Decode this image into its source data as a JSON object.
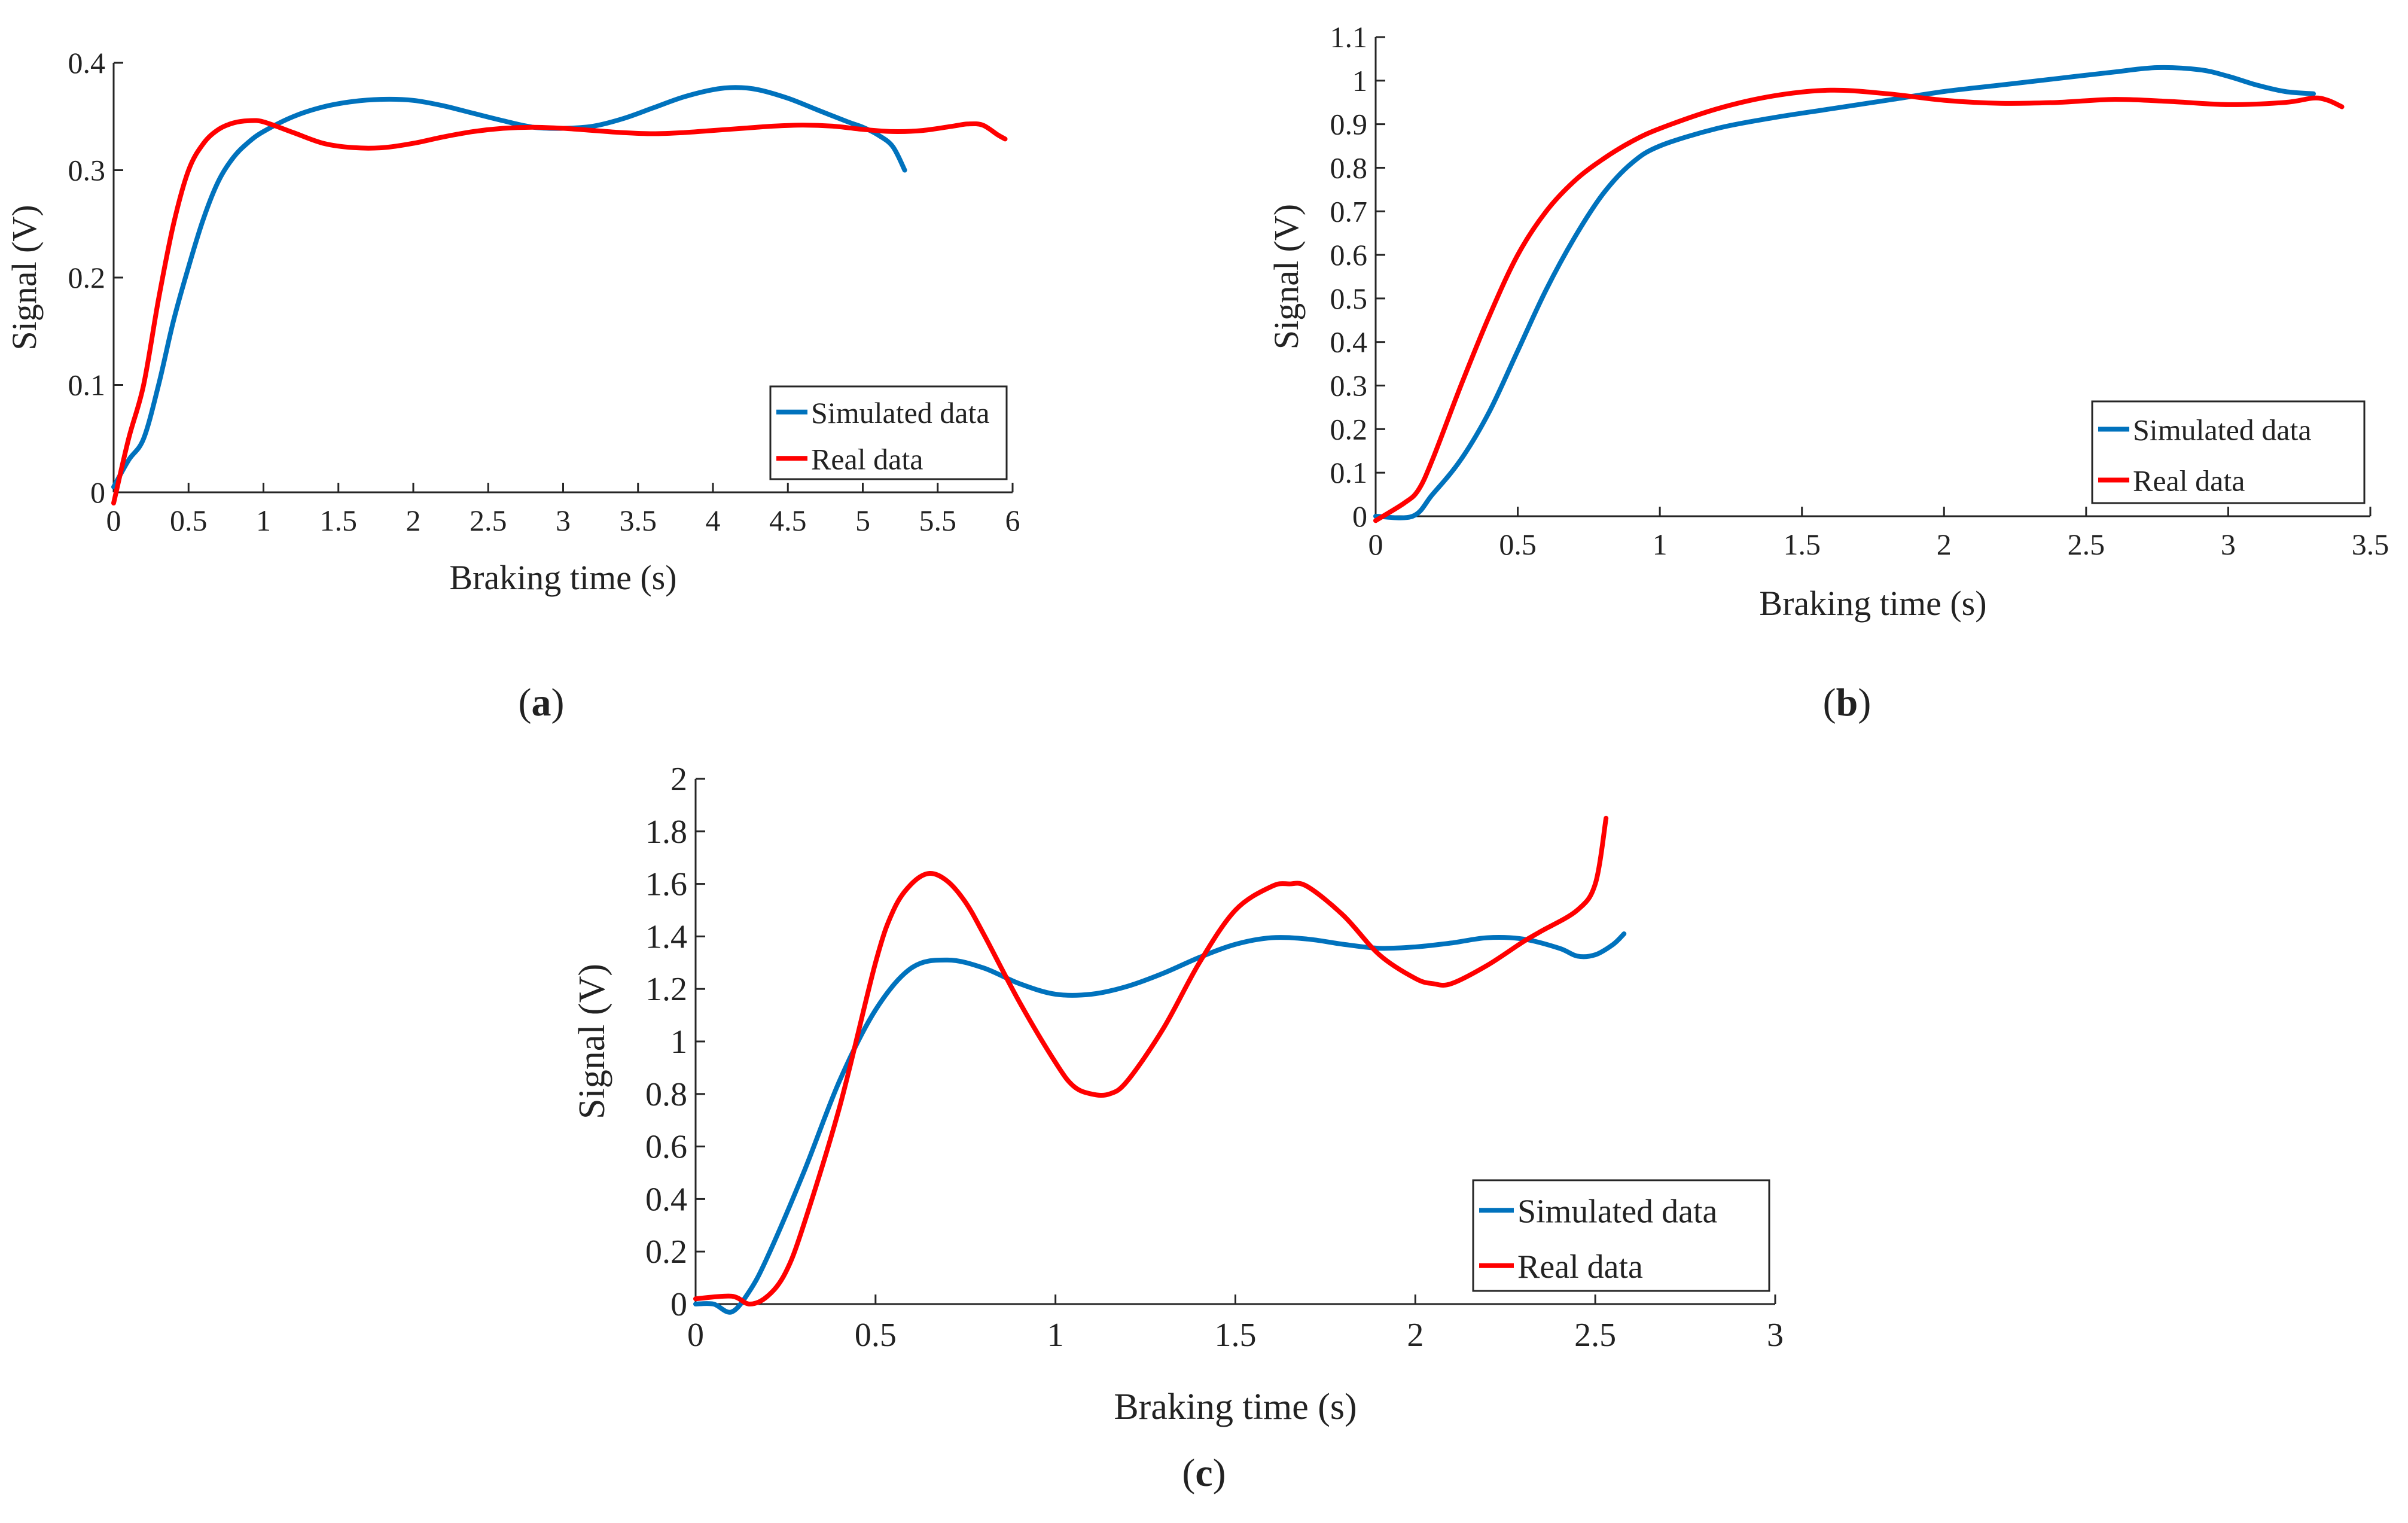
{
  "chart_data": [
    {
      "panel": "a",
      "type": "line",
      "xlabel": "Braking time (s)",
      "ylabel": "Signal (V)",
      "xlim": [
        0,
        6
      ],
      "ylim": [
        0,
        0.4
      ],
      "xticks": [
        0,
        0.5,
        1,
        1.5,
        2,
        2.5,
        3,
        3.5,
        4,
        4.5,
        5,
        5.5,
        6
      ],
      "yticks": [
        0,
        0.1,
        0.2,
        0.3,
        0.4
      ],
      "legend": "bottom-right",
      "series": [
        {
          "name": "Simulated data",
          "color": "#0072BD",
          "points": [
            [
              0,
              0.005
            ],
            [
              0.1,
              0.03
            ],
            [
              0.2,
              0.05
            ],
            [
              0.3,
              0.1
            ],
            [
              0.4,
              0.16
            ],
            [
              0.5,
              0.21
            ],
            [
              0.6,
              0.255
            ],
            [
              0.7,
              0.29
            ],
            [
              0.8,
              0.312
            ],
            [
              0.9,
              0.326
            ],
            [
              1.0,
              0.336
            ],
            [
              1.2,
              0.35
            ],
            [
              1.4,
              0.359
            ],
            [
              1.6,
              0.364
            ],
            [
              1.8,
              0.366
            ],
            [
              2.0,
              0.365
            ],
            [
              2.2,
              0.36
            ],
            [
              2.4,
              0.353
            ],
            [
              2.6,
              0.346
            ],
            [
              2.8,
              0.34
            ],
            [
              3.0,
              0.339
            ],
            [
              3.2,
              0.341
            ],
            [
              3.4,
              0.348
            ],
            [
              3.6,
              0.358
            ],
            [
              3.8,
              0.368
            ],
            [
              4.0,
              0.375
            ],
            [
              4.15,
              0.377
            ],
            [
              4.3,
              0.375
            ],
            [
              4.5,
              0.367
            ],
            [
              4.7,
              0.356
            ],
            [
              4.9,
              0.345
            ],
            [
              5.0,
              0.34
            ],
            [
              5.1,
              0.333
            ],
            [
              5.2,
              0.322
            ],
            [
              5.28,
              0.3
            ]
          ]
        },
        {
          "name": "Real data",
          "color": "#FF0000",
          "points": [
            [
              0,
              -0.01
            ],
            [
              0.1,
              0.05
            ],
            [
              0.2,
              0.1
            ],
            [
              0.3,
              0.18
            ],
            [
              0.4,
              0.25
            ],
            [
              0.5,
              0.3
            ],
            [
              0.6,
              0.325
            ],
            [
              0.7,
              0.338
            ],
            [
              0.8,
              0.344
            ],
            [
              0.9,
              0.346
            ],
            [
              1.0,
              0.345
            ],
            [
              1.2,
              0.335
            ],
            [
              1.4,
              0.325
            ],
            [
              1.6,
              0.321
            ],
            [
              1.8,
              0.321
            ],
            [
              2.0,
              0.325
            ],
            [
              2.2,
              0.331
            ],
            [
              2.4,
              0.336
            ],
            [
              2.6,
              0.339
            ],
            [
              2.8,
              0.34
            ],
            [
              3.0,
              0.339
            ],
            [
              3.2,
              0.337
            ],
            [
              3.4,
              0.335
            ],
            [
              3.6,
              0.334
            ],
            [
              3.8,
              0.335
            ],
            [
              4.0,
              0.337
            ],
            [
              4.2,
              0.339
            ],
            [
              4.4,
              0.341
            ],
            [
              4.6,
              0.342
            ],
            [
              4.8,
              0.341
            ],
            [
              5.0,
              0.338
            ],
            [
              5.2,
              0.336
            ],
            [
              5.4,
              0.337
            ],
            [
              5.6,
              0.341
            ],
            [
              5.7,
              0.343
            ],
            [
              5.8,
              0.342
            ],
            [
              5.9,
              0.333
            ],
            [
              5.95,
              0.329
            ]
          ]
        }
      ]
    },
    {
      "panel": "b",
      "type": "line",
      "xlabel": "Braking time (s)",
      "ylabel": "Signal (V)",
      "xlim": [
        0,
        3.5
      ],
      "ylim": [
        0,
        1.1
      ],
      "xticks": [
        0,
        0.5,
        1,
        1.5,
        2,
        2.5,
        3,
        3.5
      ],
      "yticks": [
        0,
        0.1,
        0.2,
        0.3,
        0.4,
        0.5,
        0.6,
        0.7,
        0.8,
        0.9,
        1,
        1.1
      ],
      "legend": "bottom-right",
      "series": [
        {
          "name": "Simulated data",
          "color": "#0072BD",
          "points": [
            [
              0,
              0.0
            ],
            [
              0.13,
              0.0
            ],
            [
              0.2,
              0.05
            ],
            [
              0.3,
              0.13
            ],
            [
              0.4,
              0.24
            ],
            [
              0.5,
              0.38
            ],
            [
              0.6,
              0.52
            ],
            [
              0.7,
              0.64
            ],
            [
              0.8,
              0.74
            ],
            [
              0.9,
              0.81
            ],
            [
              1.0,
              0.85
            ],
            [
              1.2,
              0.89
            ],
            [
              1.4,
              0.915
            ],
            [
              1.6,
              0.935
            ],
            [
              1.8,
              0.955
            ],
            [
              2.0,
              0.975
            ],
            [
              2.2,
              0.99
            ],
            [
              2.4,
              1.005
            ],
            [
              2.6,
              1.02
            ],
            [
              2.75,
              1.03
            ],
            [
              2.9,
              1.025
            ],
            [
              3.0,
              1.01
            ],
            [
              3.1,
              0.99
            ],
            [
              3.2,
              0.975
            ],
            [
              3.3,
              0.97
            ]
          ]
        },
        {
          "name": "Real data",
          "color": "#FF0000",
          "points": [
            [
              0,
              -0.01
            ],
            [
              0.1,
              0.03
            ],
            [
              0.15,
              0.06
            ],
            [
              0.2,
              0.13
            ],
            [
              0.3,
              0.3
            ],
            [
              0.4,
              0.46
            ],
            [
              0.5,
              0.6
            ],
            [
              0.6,
              0.7
            ],
            [
              0.7,
              0.77
            ],
            [
              0.8,
              0.82
            ],
            [
              0.9,
              0.86
            ],
            [
              1.0,
              0.89
            ],
            [
              1.2,
              0.935
            ],
            [
              1.4,
              0.965
            ],
            [
              1.6,
              0.978
            ],
            [
              1.8,
              0.97
            ],
            [
              2.0,
              0.955
            ],
            [
              2.2,
              0.948
            ],
            [
              2.4,
              0.95
            ],
            [
              2.6,
              0.957
            ],
            [
              2.8,
              0.952
            ],
            [
              3.0,
              0.945
            ],
            [
              3.2,
              0.95
            ],
            [
              3.3,
              0.96
            ],
            [
              3.35,
              0.955
            ],
            [
              3.4,
              0.94
            ]
          ]
        }
      ]
    },
    {
      "panel": "c",
      "type": "line",
      "xlabel": "Braking time (s)",
      "ylabel": "Signal (V)",
      "xlim": [
        0,
        3
      ],
      "ylim": [
        0,
        2
      ],
      "xticks": [
        0,
        0.5,
        1,
        1.5,
        2,
        2.5,
        3
      ],
      "yticks": [
        0,
        0.2,
        0.4,
        0.6,
        0.8,
        1,
        1.2,
        1.4,
        1.6,
        1.8,
        2
      ],
      "legend": "bottom-right",
      "series": [
        {
          "name": "Simulated data",
          "color": "#0072BD",
          "points": [
            [
              0,
              0.0
            ],
            [
              0.05,
              0.0
            ],
            [
              0.1,
              -0.03
            ],
            [
              0.15,
              0.05
            ],
            [
              0.2,
              0.18
            ],
            [
              0.3,
              0.5
            ],
            [
              0.4,
              0.85
            ],
            [
              0.5,
              1.12
            ],
            [
              0.6,
              1.28
            ],
            [
              0.7,
              1.31
            ],
            [
              0.8,
              1.28
            ],
            [
              0.9,
              1.22
            ],
            [
              1.0,
              1.18
            ],
            [
              1.1,
              1.18
            ],
            [
              1.2,
              1.21
            ],
            [
              1.3,
              1.26
            ],
            [
              1.4,
              1.32
            ],
            [
              1.5,
              1.37
            ],
            [
              1.6,
              1.395
            ],
            [
              1.7,
              1.39
            ],
            [
              1.8,
              1.37
            ],
            [
              1.9,
              1.355
            ],
            [
              2.0,
              1.36
            ],
            [
              2.1,
              1.375
            ],
            [
              2.2,
              1.395
            ],
            [
              2.3,
              1.39
            ],
            [
              2.4,
              1.355
            ],
            [
              2.45,
              1.325
            ],
            [
              2.5,
              1.33
            ],
            [
              2.55,
              1.37
            ],
            [
              2.58,
              1.41
            ]
          ]
        },
        {
          "name": "Real data",
          "color": "#FF0000",
          "points": [
            [
              0,
              0.02
            ],
            [
              0.1,
              0.03
            ],
            [
              0.15,
              0.0
            ],
            [
              0.2,
              0.03
            ],
            [
              0.25,
              0.12
            ],
            [
              0.3,
              0.3
            ],
            [
              0.4,
              0.75
            ],
            [
              0.5,
              1.3
            ],
            [
              0.55,
              1.5
            ],
            [
              0.6,
              1.6
            ],
            [
              0.65,
              1.64
            ],
            [
              0.7,
              1.61
            ],
            [
              0.75,
              1.53
            ],
            [
              0.8,
              1.41
            ],
            [
              0.9,
              1.15
            ],
            [
              1.0,
              0.92
            ],
            [
              1.05,
              0.83
            ],
            [
              1.1,
              0.8
            ],
            [
              1.15,
              0.8
            ],
            [
              1.2,
              0.85
            ],
            [
              1.3,
              1.05
            ],
            [
              1.4,
              1.3
            ],
            [
              1.5,
              1.5
            ],
            [
              1.6,
              1.59
            ],
            [
              1.65,
              1.6
            ],
            [
              1.7,
              1.59
            ],
            [
              1.8,
              1.48
            ],
            [
              1.9,
              1.33
            ],
            [
              2.0,
              1.24
            ],
            [
              2.05,
              1.22
            ],
            [
              2.1,
              1.22
            ],
            [
              2.2,
              1.29
            ],
            [
              2.3,
              1.38
            ],
            [
              2.35,
              1.42
            ],
            [
              2.45,
              1.5
            ],
            [
              2.5,
              1.6
            ],
            [
              2.53,
              1.85
            ]
          ]
        }
      ]
    }
  ],
  "panel_labels": {
    "a": "a",
    "b": "b",
    "c": "c",
    "open": "(",
    "close": ")"
  }
}
